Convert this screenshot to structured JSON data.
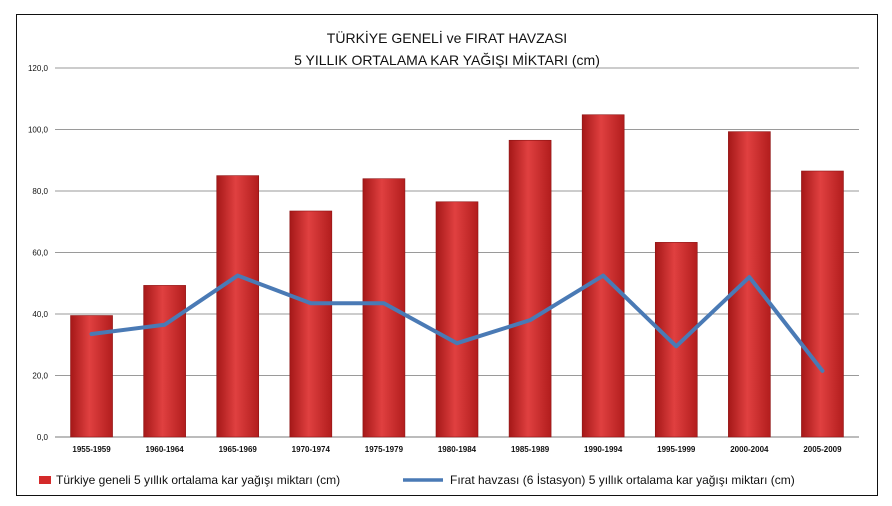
{
  "chart_data": {
    "type": "bar",
    "title": "TÜRKİYE GENELİ ve FIRAT HAVZASI",
    "subtitle": "5 YILLIK ORTALAMA KAR YAĞIŞI MİKTARI (cm)",
    "categories": [
      "1955-1959",
      "1960-1964",
      "1965-1969",
      "1970-1974",
      "1975-1979",
      "1980-1984",
      "1985-1989",
      "1990-1994",
      "1995-1999",
      "2000-2004",
      "2005-2009"
    ],
    "series": [
      {
        "name": "Türkiye geneli 5 yıllık ortalama kar yağışı miktarı (cm)",
        "type": "bar",
        "color": "#d42a2a",
        "values": [
          39.5,
          49.3,
          85.0,
          73.5,
          84.0,
          76.5,
          96.5,
          104.8,
          63.3,
          99.3,
          86.5
        ]
      },
      {
        "name": "Fırat havzası (6 İstasyon) 5 yıllık ortalama kar yağışı miktarı (cm)",
        "type": "line",
        "color": "#4a7ab5",
        "values": [
          33.5,
          36.5,
          52.5,
          43.5,
          43.5,
          30.5,
          38.0,
          52.5,
          29.5,
          52.0,
          21.5
        ]
      }
    ],
    "y_ticks": [
      "0,0",
      "20,0",
      "40,0",
      "60,0",
      "80,0",
      "100,0",
      "120,0"
    ],
    "ylim": [
      0,
      120
    ],
    "grid": true,
    "legend_position": "bottom"
  }
}
